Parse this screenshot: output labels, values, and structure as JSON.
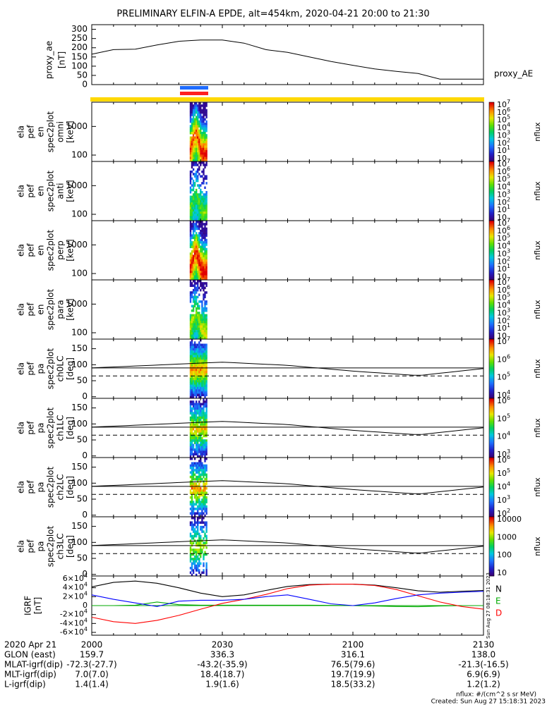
{
  "title": "PRELIMINARY ELFIN-A EPDE, alt=454km, 2020-04-21 20:00 to 21:30",
  "x_ticks": [
    "2000",
    "2030",
    "2100",
    "2130"
  ],
  "chart_data": [
    {
      "type": "line",
      "panel": "proxy_ae",
      "ylabel": "proxy_ae [nT]",
      "legend": "proxy_AE",
      "yticks": [
        "0",
        "50",
        "100",
        "150",
        "200",
        "250",
        "300"
      ],
      "ylim": [
        0,
        310
      ],
      "x_minutes": [
        0,
        5,
        10,
        15,
        20,
        25,
        30,
        35,
        40,
        45,
        50,
        55,
        60,
        65,
        70,
        75,
        80,
        85,
        90
      ],
      "y": [
        165,
        190,
        192,
        215,
        235,
        242,
        242,
        225,
        190,
        175,
        150,
        125,
        105,
        85,
        72,
        60,
        30,
        30,
        30
      ]
    },
    {
      "type": "heatmap",
      "panel": "ela_pef_en_spec2plot_omni",
      "ylabel": "ela pef en spec2plot omni [keV]",
      "yticks": [
        "100",
        "1000"
      ],
      "colorbar_label": "nflux",
      "colorbar_ticks": [
        "10",
        "10^1",
        "10^2",
        "10^3",
        "10^4",
        "10^5",
        "10^6",
        "10^7"
      ]
    },
    {
      "type": "heatmap",
      "panel": "ela_pef_en_spec2plot_anti",
      "ylabel": "ela pef en spec2plot anti [keV]",
      "yticks": [
        "100",
        "1000"
      ],
      "colorbar_label": "nflux",
      "colorbar_ticks": [
        "10",
        "10^1",
        "10^2",
        "10^3",
        "10^4",
        "10^5",
        "10^6",
        "10^7"
      ]
    },
    {
      "type": "heatmap",
      "panel": "ela_pef_en_spec2plot_perp",
      "ylabel": "ela pef en spec2plot perp [keV]",
      "yticks": [
        "100",
        "1000"
      ],
      "colorbar_label": "nflux",
      "colorbar_ticks": [
        "10",
        "10^1",
        "10^2",
        "10^3",
        "10^4",
        "10^5",
        "10^6",
        "10^7"
      ]
    },
    {
      "type": "heatmap",
      "panel": "ela_pef_en_spec2plot_para",
      "ylabel": "ela pef en spec2plot para [keV]",
      "yticks": [
        "100",
        "1000"
      ],
      "colorbar_label": "nflux",
      "colorbar_ticks": [
        "10",
        "10^1",
        "10^2",
        "10^3",
        "10^4",
        "10^5",
        "10^6",
        "10^7"
      ]
    },
    {
      "type": "heatmap",
      "panel": "ela_pef_pa_spec2plot_ch0LC",
      "ylabel": "ela pef pa spec2plot ch0LC [deg]",
      "yticks": [
        "0",
        "50",
        "100",
        "150"
      ],
      "colorbar_label": "nflux",
      "colorbar_ticks": [
        "10^4",
        "10^5",
        "10^6",
        "10^7"
      ]
    },
    {
      "type": "heatmap",
      "panel": "ela_pef_pa_spec2plot_ch1LC",
      "ylabel": "ela pef pa spec2plot ch1LC [deg]",
      "yticks": [
        "0",
        "50",
        "100",
        "150"
      ],
      "colorbar_label": "nflux",
      "colorbar_ticks": [
        "10^3",
        "10^4",
        "10^5",
        "10^6"
      ]
    },
    {
      "type": "heatmap",
      "panel": "ela_pef_pa_spec2plot_ch2LC",
      "ylabel": "ela pef pa spec2plot ch2LC [deg]",
      "yticks": [
        "0",
        "50",
        "100",
        "150"
      ],
      "colorbar_label": "nflux",
      "colorbar_ticks": [
        "10^2",
        "10^3",
        "10^4",
        "10^5",
        "10^6"
      ]
    },
    {
      "type": "heatmap",
      "panel": "ela_pef_pa_spec2plot_ch3LC",
      "ylabel": "ela pef pa spec2plot ch3LC [deg]",
      "yticks": [
        "0",
        "50",
        "100",
        "150"
      ],
      "colorbar_label": "nflux",
      "colorbar_ticks": [
        "10",
        "100",
        "1000",
        "10000"
      ]
    },
    {
      "type": "line",
      "panel": "IGRF",
      "ylabel": "IGRF [nT]",
      "yticks": [
        "-6x10^4",
        "-4x10^4",
        "-2x10^4",
        "0",
        "2x10^4",
        "4x10^4",
        "6x10^4"
      ],
      "ylim": [
        -60000,
        60000
      ],
      "x_minutes": [
        0,
        5,
        10,
        15,
        20,
        25,
        30,
        35,
        40,
        45,
        50,
        55,
        60,
        65,
        70,
        75,
        80,
        85,
        90
      ],
      "series": [
        {
          "name": "N",
          "color": "#000000",
          "values": [
            42000,
            52000,
            55000,
            50000,
            40000,
            28000,
            20000,
            24000,
            34000,
            43000,
            47000,
            48000,
            48000,
            46000,
            40000,
            33000,
            30000,
            32000,
            34000
          ]
        },
        {
          "name": "E",
          "color": "#00aa00",
          "values": [
            0,
            0,
            1000,
            8000,
            2000,
            1000,
            1000,
            1000,
            1000,
            1000,
            1000,
            500,
            0,
            -1000,
            -2000,
            -2500,
            -1000,
            0,
            0
          ]
        },
        {
          "name": "D",
          "color": "#ff0000",
          "values": [
            -26000,
            -36000,
            -40000,
            -33000,
            -22000,
            -8000,
            5000,
            14000,
            25000,
            38000,
            46000,
            48000,
            48000,
            45000,
            36000,
            22000,
            8000,
            -2000,
            -8000
          ]
        },
        {
          "name": "",
          "color": "#0000ff",
          "values": [
            24000,
            14000,
            6000,
            -2000,
            10000,
            12000,
            12000,
            14000,
            20000,
            24000,
            14000,
            4000,
            0,
            6000,
            16000,
            24000,
            28000,
            30000,
            32000
          ]
        }
      ]
    }
  ],
  "footer_rows": [
    {
      "label": "2020 Apr 21",
      "values": [
        "2000",
        "2030",
        "2100",
        "2130"
      ]
    },
    {
      "label": "GLON (east)",
      "values": [
        "159.7",
        "336.3",
        "316.1",
        "138.0"
      ]
    },
    {
      "label": "MLAT-igrf(dip)",
      "values": [
        "-72.3(-27.7)",
        "-43.2(-35.9)",
        "76.5(79.6)",
        "-21.3(-16.5)"
      ]
    },
    {
      "label": "MLT-igrf(dip)",
      "values": [
        "7.0(7.0)",
        "18.4(18.7)",
        "19.7(19.9)",
        "6.9(6.9)"
      ]
    },
    {
      "label": "L-igrf(dip)",
      "values": [
        "1.4(1.4)",
        "1.9(1.6)",
        "18.5(33.2)",
        "1.2(1.2)"
      ]
    }
  ],
  "footnote": "nflux: #/(cm^2 s sr MeV)",
  "created": "Created: Sun Aug 27 15:18:31 2023",
  "side_stamp": "Sun Aug 27 08:18:31 2023"
}
